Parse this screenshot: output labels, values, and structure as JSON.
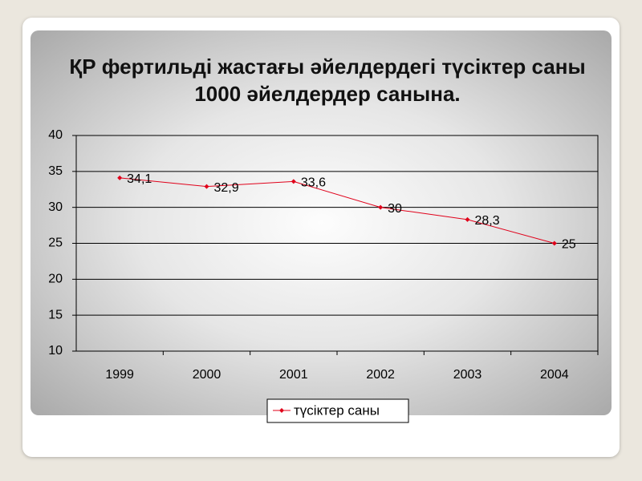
{
  "chart_data": {
    "type": "line",
    "title": "ҚР фертильді жастағы әйелдердегі түсіктер саны 1000 әйелдердер санына.",
    "categories": [
      "1999",
      "2000",
      "2001",
      "2002",
      "2003",
      "2004"
    ],
    "series": [
      {
        "name": "түсіктер саны",
        "color": "#e0001a",
        "values": [
          34.1,
          32.9,
          33.6,
          30,
          28.3,
          25
        ],
        "value_labels": [
          "34,1",
          "32,9",
          "33,6",
          "30",
          "28,3",
          "25"
        ]
      }
    ],
    "ylim": [
      10,
      40
    ],
    "yticks": [
      10,
      15,
      20,
      25,
      30,
      35,
      40
    ],
    "grid": true,
    "legend": "bottom"
  }
}
